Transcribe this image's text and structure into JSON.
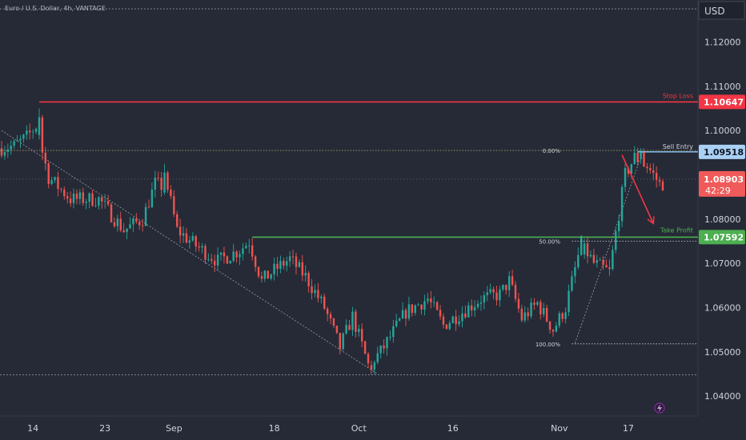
{
  "header": {
    "symbol_title": "Euro / U.S. Dollar, 4h, VANTAGE",
    "currency": "USD"
  },
  "colors": {
    "background": "#252a36",
    "up": "#26a69a",
    "down": "#ef5350",
    "stop": "#f23645",
    "entry": "#90caf9",
    "target": "#4caf50",
    "axis_text": "#d1d4dc"
  },
  "chart_data": {
    "type": "candlestick",
    "title": "Euro / U.S. Dollar, 4h, VANTAGE",
    "ylim": [
      1.0355,
      1.1295
    ],
    "y_ticks": [
      "1.04000",
      "1.05000",
      "1.06000",
      "1.07000",
      "1.08000",
      "1.09000",
      "1.10000",
      "1.11000",
      "1.12000"
    ],
    "x_ticks": [
      {
        "label": "14",
        "i": 10
      },
      {
        "label": "23",
        "i": 33
      },
      {
        "label": "Sep",
        "i": 55
      },
      {
        "label": "18",
        "i": 87
      },
      {
        "label": "Oct",
        "i": 114
      },
      {
        "label": "16",
        "i": 144
      },
      {
        "label": "Nov",
        "i": 178
      },
      {
        "label": "17",
        "i": 200
      }
    ],
    "n_bars": 212,
    "anchors": [
      [
        0,
        1.096
      ],
      [
        5,
        1.0965
      ],
      [
        9,
        1.0985
      ],
      [
        12,
        1.101
      ],
      [
        16,
        1.0895
      ],
      [
        23,
        1.0845
      ],
      [
        32,
        1.0845
      ],
      [
        40,
        1.0775
      ],
      [
        46,
        1.08
      ],
      [
        50,
        1.088
      ],
      [
        54,
        1.087
      ],
      [
        57,
        1.0775
      ],
      [
        63,
        1.074
      ],
      [
        70,
        1.0705
      ],
      [
        77,
        1.073
      ],
      [
        80,
        1.075
      ],
      [
        84,
        1.066
      ],
      [
        89,
        1.069
      ],
      [
        93,
        1.071
      ],
      [
        98,
        1.067
      ],
      [
        104,
        1.06
      ],
      [
        109,
        1.051
      ],
      [
        113,
        1.058
      ],
      [
        118,
        1.047
      ],
      [
        122,
        1.05
      ],
      [
        130,
        1.059
      ],
      [
        137,
        1.062
      ],
      [
        142,
        1.056
      ],
      [
        148,
        1.059
      ],
      [
        154,
        1.062
      ],
      [
        160,
        1.063
      ],
      [
        163,
        1.066
      ],
      [
        167,
        1.0575
      ],
      [
        172,
        1.061
      ],
      [
        177,
        1.055
      ],
      [
        181,
        1.06
      ],
      [
        186,
        1.0745
      ],
      [
        190,
        1.07
      ],
      [
        195,
        1.068
      ],
      [
        200,
        1.09
      ],
      [
        203,
        1.094
      ],
      [
        207,
        1.092
      ],
      [
        211,
        1.088
      ]
    ],
    "fixed_bars": [
      {
        "i": 12,
        "o": 1.099,
        "h": 1.105,
        "l": 1.098,
        "c": 1.103
      },
      {
        "i": 52,
        "o": 1.086,
        "h": 1.0925,
        "l": 1.0855,
        "c": 1.0905
      },
      {
        "i": 118,
        "o": 1.047,
        "h": 1.048,
        "l": 1.0449,
        "c": 1.046
      },
      {
        "i": 186,
        "o": 1.072,
        "h": 1.0755,
        "l": 1.071,
        "c": 1.0745
      },
      {
        "i": 204,
        "o": 1.0935,
        "h": 1.096,
        "l": 1.0925,
        "c": 1.095
      }
    ],
    "levels": {
      "stop_loss": {
        "label": "Stop Loss",
        "price": 1.10647,
        "price_label": "1.10647"
      },
      "sell_entry": {
        "label": "Sell Entry",
        "price": 1.09518,
        "price_label": "1.09518"
      },
      "take_profit": {
        "label": "Take Profit",
        "price": 1.07592,
        "price_label": "1.07592"
      },
      "current": {
        "price": 1.08903,
        "price_label": "1.08903",
        "countdown": "42:29"
      }
    },
    "fibonacci": [
      {
        "label": "0.00%",
        "price": 1.0955
      },
      {
        "label": "50.00%",
        "price": 1.075
      },
      {
        "label": "100.00%",
        "price": 1.0518
      }
    ],
    "reference_levels": [
      1.1275,
      1.0448
    ],
    "trendlines": [
      {
        "from": [
          0,
          1.1
        ],
        "to": [
          120,
          1.045
        ]
      },
      {
        "from": [
          183,
          1.052
        ],
        "to": [
          205,
          1.096
        ]
      }
    ],
    "projection_arrow": {
      "from": [
        198,
        1.0945
      ],
      "to": [
        208,
        1.079
      ]
    }
  }
}
